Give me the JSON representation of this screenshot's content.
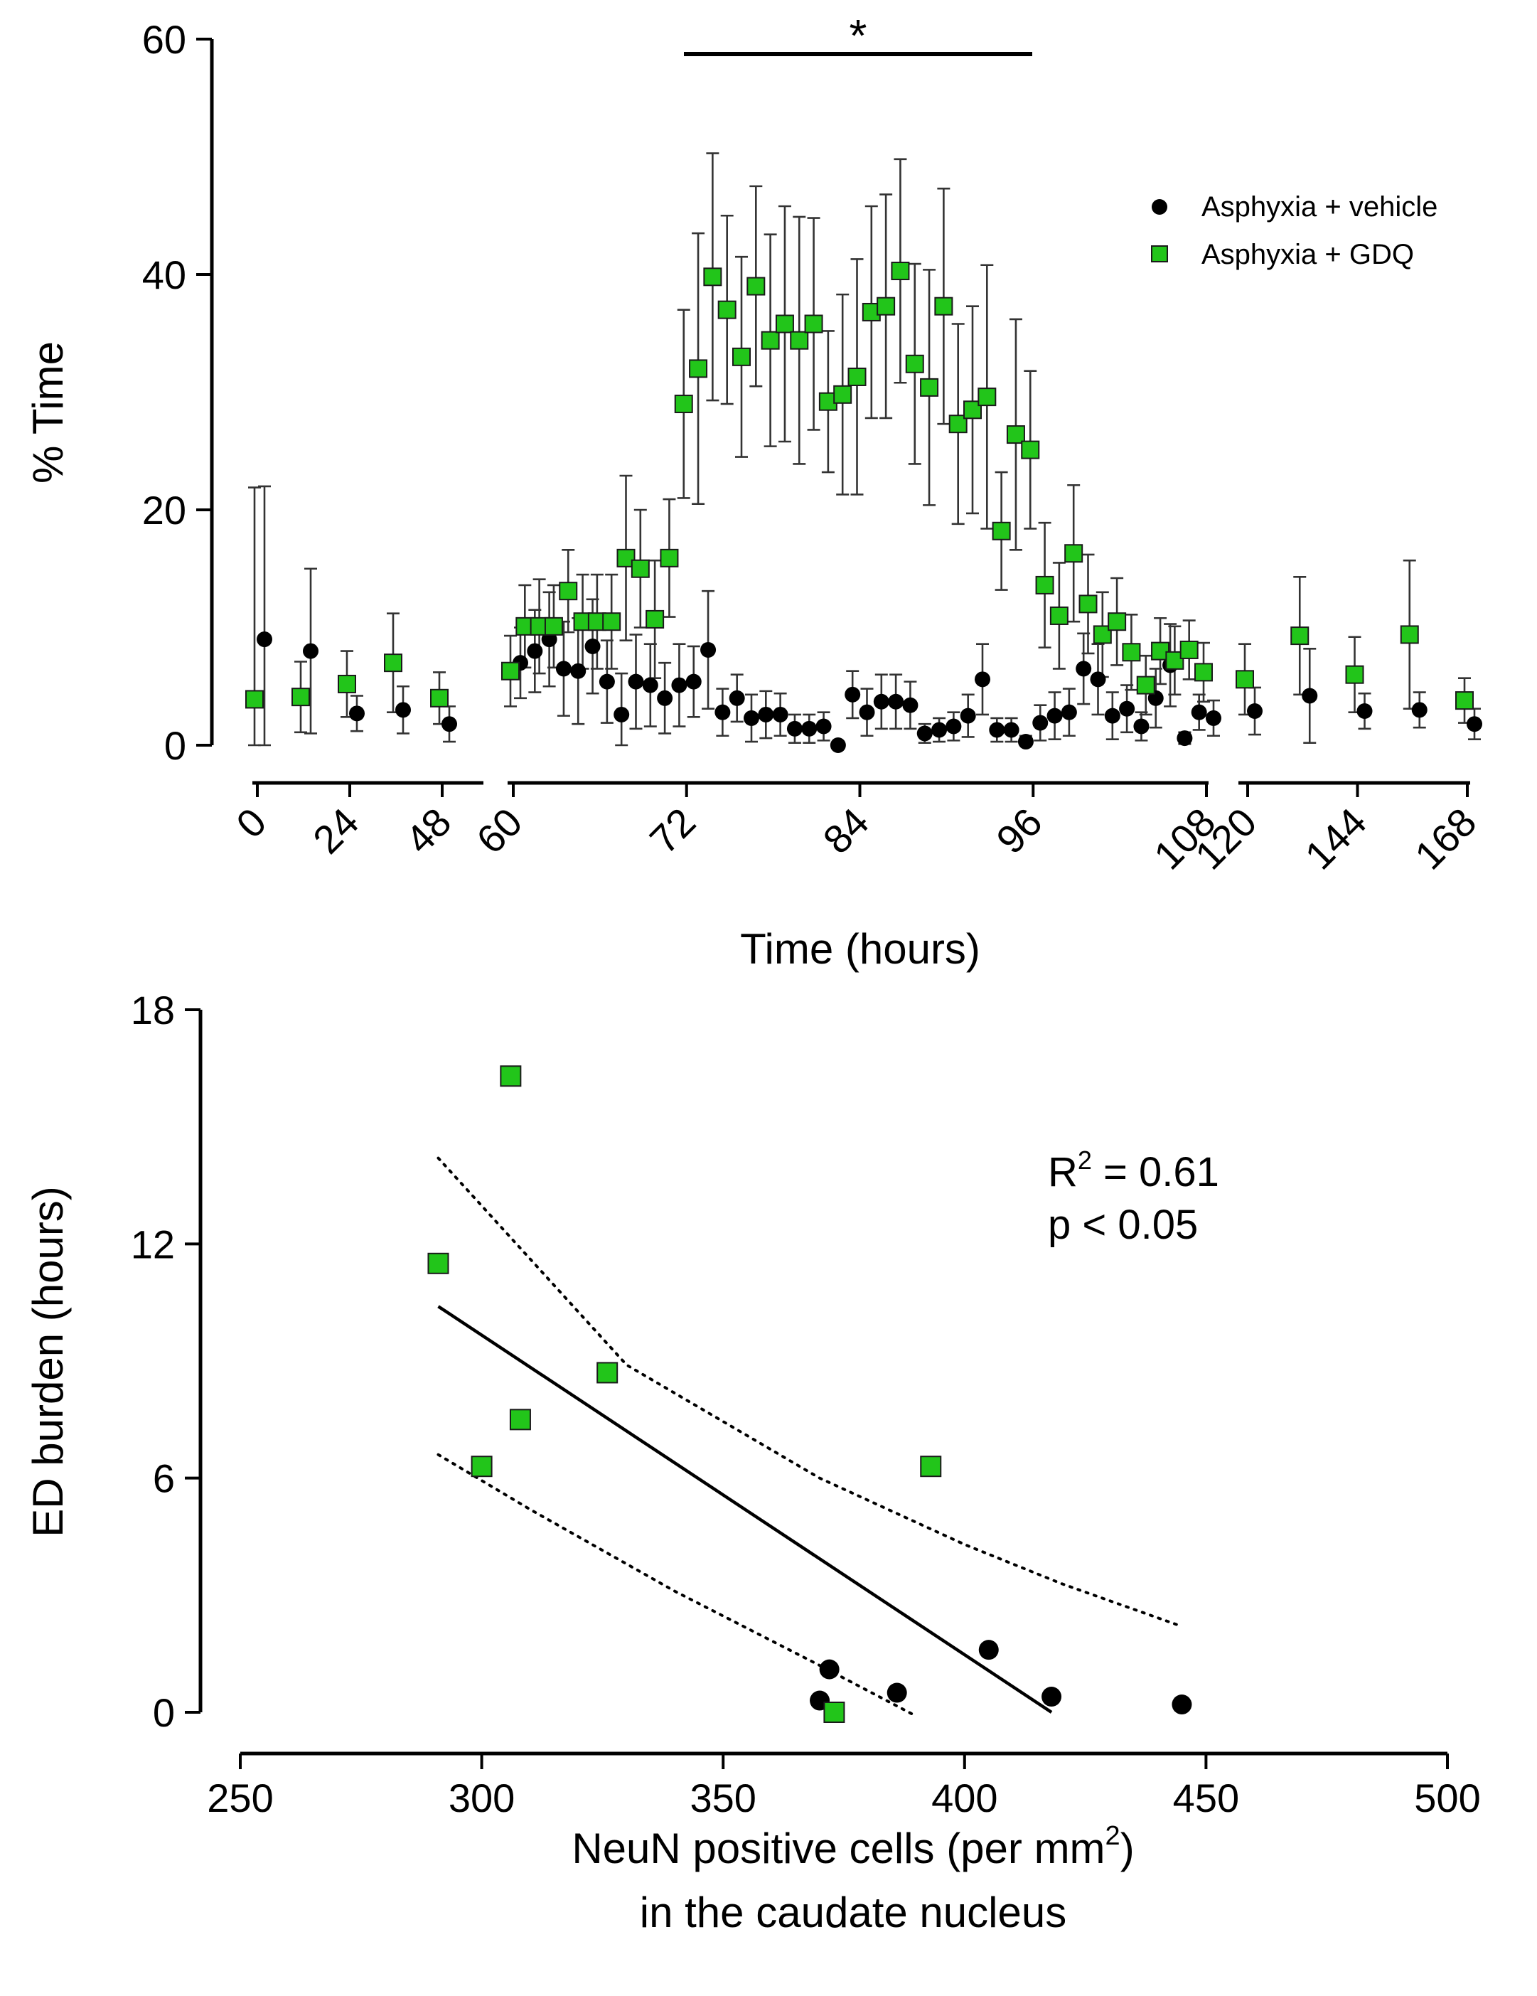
{
  "chart_data": [
    {
      "type": "scatter",
      "title": "",
      "xlabel": "Time (hours)",
      "ylabel": "% Time",
      "ylim": [
        0,
        60
      ],
      "yticks": [
        0,
        20,
        40,
        60
      ],
      "x_segments": [
        {
          "range": [
            0,
            48
          ],
          "ticks": [
            0,
            24,
            48
          ]
        },
        {
          "range": [
            60,
            108
          ],
          "ticks": [
            60,
            72,
            84,
            96,
            108
          ]
        },
        {
          "range": [
            120,
            168
          ],
          "ticks": [
            120,
            144,
            168
          ]
        }
      ],
      "significance": {
        "label": "*",
        "x_range": [
          72,
          96
        ]
      },
      "legend": {
        "position": "top-right"
      },
      "series": [
        {
          "name": "Asphyxia + vehicle",
          "marker": "circle",
          "color": "#000000",
          "x": [
            0,
            12,
            24,
            36,
            48,
            60,
            61,
            62,
            63,
            64,
            65,
            66,
            67,
            68,
            69,
            70,
            71,
            72,
            73,
            74,
            75,
            76,
            77,
            78,
            79,
            80,
            81,
            82,
            83,
            84,
            85,
            86,
            87,
            88,
            89,
            90,
            91,
            92,
            93,
            94,
            95,
            96,
            97,
            98,
            99,
            100,
            101,
            102,
            103,
            104,
            105,
            106,
            107,
            108,
            120,
            132,
            144,
            156,
            168
          ],
          "y": [
            9,
            8,
            2.7,
            3,
            1.8,
            7,
            8,
            9,
            6.5,
            6.3,
            8.4,
            5.4,
            2.6,
            5.4,
            5.1,
            4,
            5.1,
            5.4,
            8.1,
            2.8,
            4,
            2.3,
            2.6,
            2.6,
            1.4,
            1.4,
            1.6,
            0,
            4.3,
            2.8,
            3.7,
            3.7,
            3.4,
            1,
            1.3,
            1.6,
            2.5,
            5.6,
            1.3,
            1.3,
            0.3,
            1.9,
            2.5,
            2.8,
            6.5,
            5.6,
            2.5,
            3.1,
            1.6,
            4,
            6.8,
            0.6,
            2.8,
            2.3,
            2.9,
            4.2,
            2.9,
            3,
            1.8
          ],
          "sem": [
            13,
            7,
            1.5,
            2,
            1.5,
            3,
            3.5,
            4,
            4,
            4.5,
            4,
            3.5,
            3.5,
            4,
            3.5,
            3,
            3.5,
            3,
            5,
            2,
            2,
            2,
            2,
            1.8,
            1.2,
            1.2,
            1.2,
            0.3,
            2,
            2,
            2.3,
            2.3,
            2,
            0.8,
            1,
            1.2,
            1.8,
            3,
            1,
            1,
            0.5,
            1.5,
            2,
            2,
            3,
            3,
            2,
            2,
            1.2,
            2.5,
            3.5,
            0.5,
            1.5,
            1.5,
            2,
            4,
            1.5,
            1.5,
            1.3
          ]
        },
        {
          "name": "Asphyxia + GDQ",
          "marker": "square",
          "color": "#22c51a",
          "x": [
            0,
            12,
            24,
            36,
            48,
            60,
            61,
            62,
            63,
            64,
            65,
            66,
            67,
            68,
            69,
            70,
            71,
            72,
            73,
            74,
            75,
            76,
            77,
            78,
            79,
            80,
            81,
            82,
            83,
            84,
            85,
            86,
            87,
            88,
            89,
            90,
            91,
            92,
            93,
            94,
            95,
            96,
            97,
            98,
            99,
            100,
            101,
            102,
            103,
            104,
            105,
            106,
            107,
            108,
            120,
            132,
            144,
            156,
            168
          ],
          "y": [
            3.9,
            4.1,
            5.2,
            7,
            4,
            6.3,
            10.1,
            10.1,
            10.1,
            13.1,
            10.5,
            10.5,
            10.5,
            15.9,
            15,
            10.7,
            15.9,
            29,
            32,
            39.8,
            37,
            33,
            39,
            34.4,
            35.8,
            34.4,
            35.8,
            29.2,
            29.8,
            31.3,
            36.8,
            37.3,
            40.3,
            32.4,
            30.4,
            37.3,
            27.3,
            28.5,
            29.6,
            18.2,
            26.4,
            25.1,
            13.6,
            11,
            16.3,
            12,
            9.4,
            10.5,
            7.9,
            5.1,
            8,
            7.2,
            8.1,
            6.2,
            5.6,
            9.3,
            6,
            9.4,
            3.8
          ],
          "sem": [
            18,
            3,
            2.8,
            4.2,
            2.2,
            3,
            3.5,
            4,
            3.5,
            3.5,
            4,
            4,
            4,
            7,
            5,
            5,
            5,
            8,
            11.5,
            10.5,
            8,
            8.5,
            8.5,
            9,
            10,
            10.5,
            9,
            6,
            8.5,
            10,
            9,
            9.5,
            9.5,
            8.5,
            10,
            10,
            8.5,
            8.8,
            11.2,
            5,
            9.8,
            6.7,
            5.3,
            4.5,
            5.8,
            4.2,
            3.6,
            3.7,
            3.2,
            2.5,
            2.8,
            2.9,
            2.5,
            2.5,
            3,
            5,
            3.2,
            6.3,
            1.9
          ]
        }
      ]
    },
    {
      "type": "scatter",
      "title": "",
      "xlabel_line1": "NeuN positive cells (per mm",
      "xlabel_sup": "2",
      "xlabel_close": ")",
      "xlabel_line2": "in the caudate nucleus",
      "ylabel": "ED burden (hours)",
      "xlim": [
        250,
        500
      ],
      "ylim": [
        0,
        18
      ],
      "xticks": [
        250,
        300,
        350,
        400,
        450,
        500
      ],
      "yticks": [
        0,
        6,
        12,
        18
      ],
      "annotation": {
        "r2_prefix": "R",
        "r2_sup": "2",
        "r2_value": " = 0.61",
        "p_text": "p < 0.05"
      },
      "series": [
        {
          "name": "Asphyxia + vehicle",
          "marker": "circle",
          "color": "#000000",
          "x": [
            370,
            372,
            386,
            405,
            418,
            445
          ],
          "y": [
            0.3,
            1.1,
            0.5,
            1.6,
            0.4,
            0.2
          ]
        },
        {
          "name": "Asphyxia + GDQ",
          "marker": "square",
          "color": "#22c51a",
          "x": [
            306,
            291,
            326,
            308,
            300,
            393,
            373
          ],
          "y": [
            16.3,
            11.5,
            8.7,
            7.5,
            6.3,
            6.3,
            0
          ]
        }
      ],
      "regression": {
        "x": [
          291,
          418
        ],
        "y": [
          10.4,
          0
        ]
      },
      "ci_upper": {
        "x": [
          291,
          330,
          370,
          400,
          420,
          445
        ],
        "y": [
          14.2,
          8.9,
          6,
          4.3,
          3.3,
          2.2
        ]
      },
      "ci_lower": {
        "x": [
          291,
          310,
          340,
          370,
          390
        ],
        "y": [
          6.6,
          5.2,
          3.1,
          1.2,
          -0.1
        ]
      }
    }
  ]
}
